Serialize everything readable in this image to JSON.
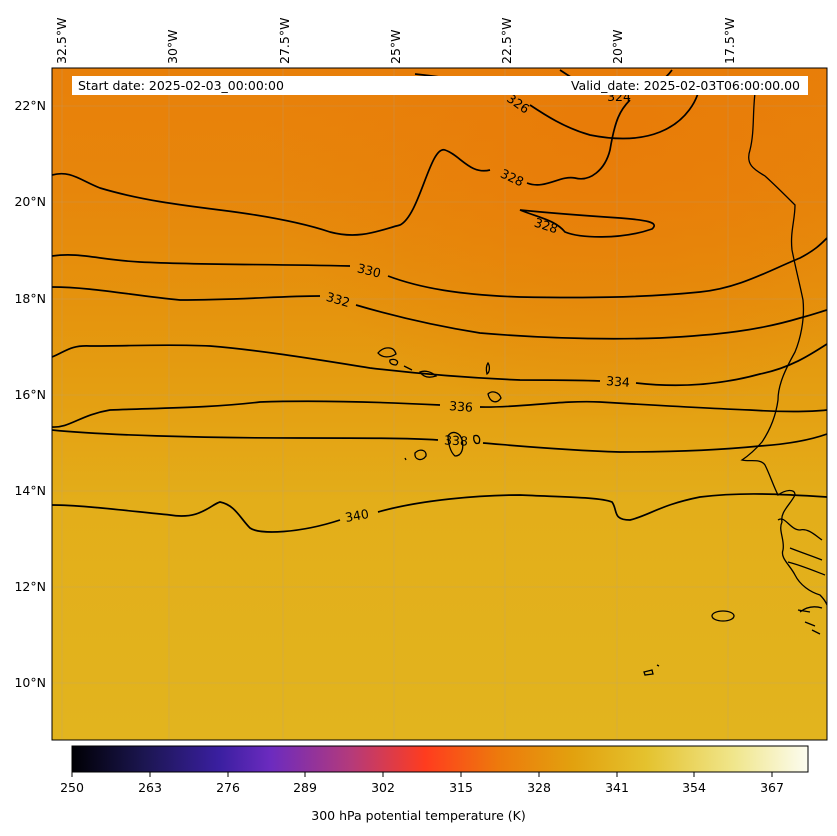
{
  "map": {
    "field": "300 hPa potential temperature",
    "projection": "plate-carree",
    "longitude_labels": [
      "32.5°W",
      "30°W",
      "27.5°W",
      "25°W",
      "22.5°W",
      "20°W",
      "17.5°W"
    ],
    "latitude_labels": [
      "22°N",
      "20°N",
      "18°N",
      "16°N",
      "14°N",
      "12°N",
      "10°N"
    ],
    "start_date_text": "Start date: 2025-02-03_00:00:00",
    "valid_date_text": "Valid_date: 2025-02-03T06:00:00.00",
    "contour_labels": [
      "326",
      "324",
      "328",
      "328",
      "330",
      "332",
      "334",
      "336",
      "338",
      "340"
    ],
    "colors": {
      "north_fill": "#e8800a",
      "mid_fill": "#e59a10",
      "south_fill": "#e2b41e",
      "contour": "#000000",
      "coast": "#000000"
    }
  },
  "colorbar": {
    "label": "300 hPa potential temperature (K)",
    "ticks": [
      "250",
      "263",
      "276",
      "289",
      "302",
      "315",
      "328",
      "341",
      "354",
      "367"
    ],
    "min": 250,
    "max": 373,
    "colormap": [
      "#000004",
      "#1c1652",
      "#3a1fa0",
      "#6c2bbf",
      "#b53a7a",
      "#ff3c1e",
      "#ed7a0c",
      "#e2a10e",
      "#e4c22e",
      "#f0e68c",
      "#fcfcf0"
    ]
  }
}
